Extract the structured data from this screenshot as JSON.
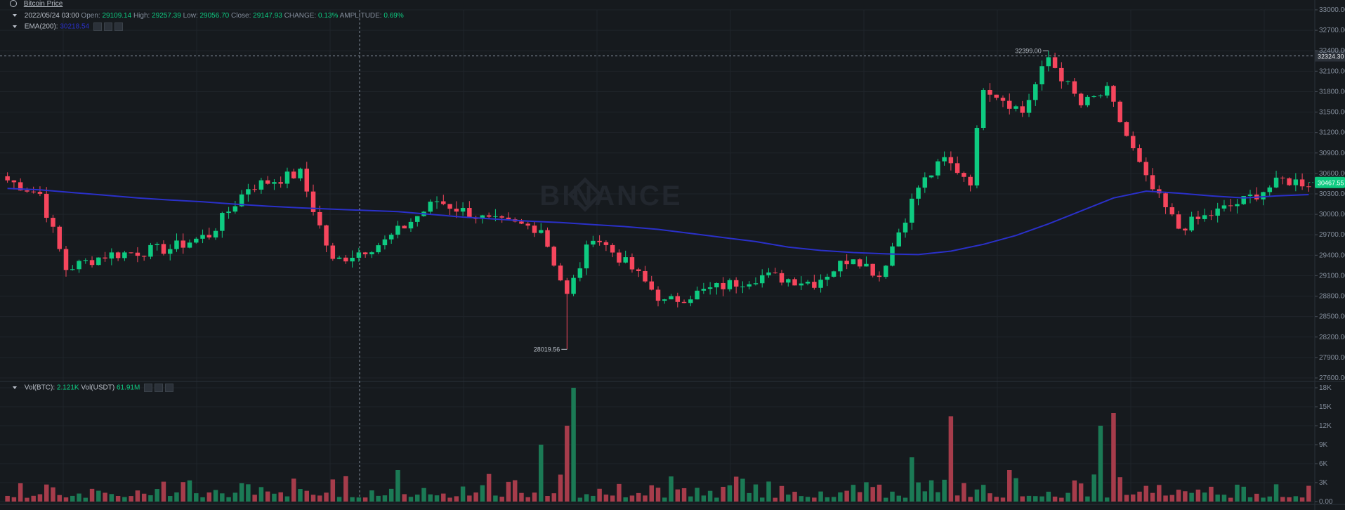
{
  "header": {
    "title": "Bitcoin Price",
    "date": "2022/05/24 03:00",
    "open_label": "Open:",
    "open": "29109.14",
    "high_label": "High:",
    "high": "29257.39",
    "low_label": "Low:",
    "low": "29056.70",
    "close_label": "Close:",
    "close": "29147.93",
    "change_label": "CHANGE:",
    "change": "0.13%",
    "amplitude_label": "AMPLITUDE:",
    "amplitude": "0.69%"
  },
  "ema": {
    "label": "EMA(200):",
    "value": "30218.54"
  },
  "vol": {
    "btc_label": "Vol(BTC):",
    "btc": "2.121K",
    "usdt_label": "Vol(USDT)",
    "usdt": "61.91M"
  },
  "watermark": "BINANCE",
  "colors": {
    "up": "#0ecb81",
    "down": "#f6465d",
    "up_vol": "#1b7a55",
    "down_vol": "#a63c4b",
    "ema": "#2a30c9",
    "bg": "#161a1e"
  },
  "chart_data": [
    {
      "type": "candlestick",
      "y_ticks": [
        "33000.00",
        "32700.00",
        "32400.00",
        "32100.00",
        "31800.00",
        "31500.00",
        "31200.00",
        "30900.00",
        "30600.00",
        "30300.00",
        "30000.00",
        "29700.00",
        "29400.00",
        "29100.00",
        "28800.00",
        "28500.00",
        "28200.00",
        "27900.00",
        "27600.00"
      ],
      "ylim": [
        27600,
        33000
      ],
      "crosshair_price": "32324.30",
      "last_price": "30467.55",
      "max_label": "32399.00",
      "min_label": "28019.56",
      "max_value": 32399,
      "min_value": 28019.56,
      "ema_series": [
        [
          0,
          30380
        ],
        [
          5,
          30360
        ],
        [
          10,
          30320
        ],
        [
          15,
          30280
        ],
        [
          20,
          30240
        ],
        [
          25,
          30210
        ],
        [
          30,
          30185
        ],
        [
          35,
          30150
        ],
        [
          40,
          30120
        ],
        [
          45,
          30095
        ],
        [
          50,
          30075
        ],
        [
          55,
          30058
        ],
        [
          60,
          30040
        ],
        [
          65,
          30000
        ],
        [
          70,
          29960
        ],
        [
          75,
          29930
        ],
        [
          80,
          29900
        ],
        [
          85,
          29880
        ],
        [
          90,
          29850
        ],
        [
          95,
          29820
        ],
        [
          100,
          29780
        ],
        [
          105,
          29720
        ],
        [
          110,
          29660
        ],
        [
          115,
          29600
        ],
        [
          120,
          29520
        ],
        [
          125,
          29470
        ],
        [
          130,
          29440
        ],
        [
          135,
          29420
        ],
        [
          140,
          29410
        ],
        [
          145,
          29460
        ],
        [
          150,
          29560
        ],
        [
          155,
          29690
        ],
        [
          160,
          29860
        ],
        [
          165,
          30050
        ],
        [
          170,
          30240
        ],
        [
          175,
          30340
        ],
        [
          180,
          30310
        ],
        [
          185,
          30270
        ],
        [
          190,
          30240
        ],
        [
          195,
          30270
        ],
        [
          200,
          30290
        ]
      ],
      "key_points": [
        [
          0,
          30500
        ],
        [
          5,
          30300
        ],
        [
          9,
          29200
        ],
        [
          15,
          29400
        ],
        [
          25,
          29500
        ],
        [
          31,
          29700
        ],
        [
          37,
          30400
        ],
        [
          45,
          30600
        ],
        [
          50,
          29300
        ],
        [
          58,
          29600
        ],
        [
          66,
          30200
        ],
        [
          74,
          29900
        ],
        [
          82,
          29800
        ],
        [
          86,
          28800
        ],
        [
          90,
          29700
        ],
        [
          96,
          29200
        ],
        [
          101,
          28700
        ],
        [
          108,
          28900
        ],
        [
          116,
          29100
        ],
        [
          124,
          29000
        ],
        [
          130,
          29400
        ],
        [
          134,
          29100
        ],
        [
          140,
          30400
        ],
        [
          144,
          30800
        ],
        [
          148,
          30500
        ],
        [
          150,
          31900
        ],
        [
          156,
          31500
        ],
        [
          160,
          32300
        ],
        [
          165,
          31600
        ],
        [
          169,
          31800
        ],
        [
          175,
          30500
        ],
        [
          180,
          29800
        ],
        [
          185,
          30000
        ],
        [
          190,
          30200
        ],
        [
          196,
          30500
        ],
        [
          200,
          30460
        ]
      ]
    },
    {
      "type": "bar",
      "series_label": "Volume",
      "y_ticks": [
        "18K",
        "15K",
        "12K",
        "9K",
        "6K",
        "3K",
        "0.00"
      ],
      "ylim": [
        0,
        18000
      ],
      "peaks": [
        [
          87,
          18000
        ],
        [
          86,
          12000
        ],
        [
          82,
          9000
        ],
        [
          145,
          13500
        ],
        [
          170,
          14000
        ],
        [
          168,
          12000
        ],
        [
          60,
          5000
        ],
        [
          139,
          7000
        ],
        [
          154,
          5000
        ]
      ]
    }
  ]
}
